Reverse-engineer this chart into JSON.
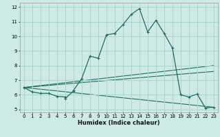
{
  "xlabel": "Humidex (Indice chaleur)",
  "bg_color": "#ceeae6",
  "grid_color": "#a8d5cf",
  "line_color": "#1e6b5e",
  "xlim": [
    -0.5,
    23.5
  ],
  "ylim": [
    4.8,
    12.3
  ],
  "xticks": [
    0,
    1,
    2,
    3,
    4,
    5,
    6,
    7,
    8,
    9,
    10,
    11,
    12,
    13,
    14,
    15,
    16,
    17,
    18,
    19,
    20,
    21,
    22,
    23
  ],
  "yticks": [
    5,
    6,
    7,
    8,
    9,
    10,
    11,
    12
  ],
  "series1_x": [
    0,
    1,
    2,
    3,
    4,
    5,
    5,
    6,
    6,
    7,
    8,
    9,
    10,
    11,
    12,
    13,
    14,
    15,
    16,
    17,
    18,
    19,
    20,
    21,
    22,
    23
  ],
  "series1_y": [
    6.5,
    6.2,
    6.1,
    6.1,
    5.9,
    5.85,
    5.75,
    6.25,
    6.3,
    7.1,
    8.65,
    8.5,
    10.1,
    10.2,
    10.8,
    11.5,
    11.9,
    10.3,
    11.1,
    10.2,
    9.2,
    6.0,
    5.85,
    6.05,
    5.1,
    5.15
  ],
  "series2_x": [
    0,
    23
  ],
  "series2_y": [
    6.5,
    8.0
  ],
  "series3_x": [
    0,
    23
  ],
  "series3_y": [
    6.5,
    7.6
  ],
  "series4_x": [
    0,
    23
  ],
  "series4_y": [
    6.5,
    5.15
  ]
}
